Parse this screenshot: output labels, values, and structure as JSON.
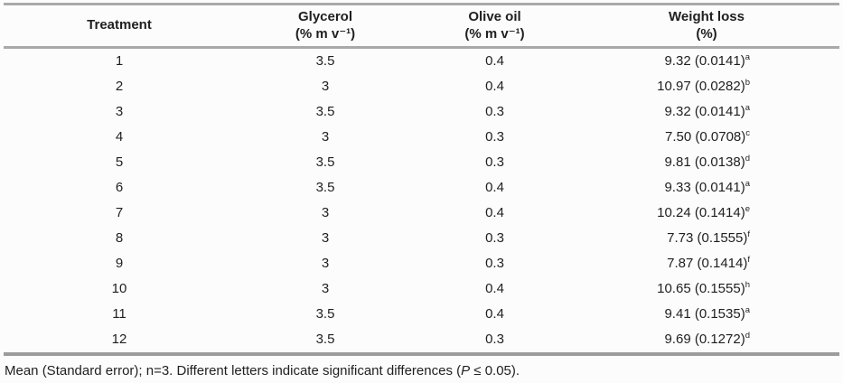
{
  "table": {
    "headers": [
      {
        "line1": "Treatment",
        "line2": ""
      },
      {
        "line1": "Glycerol",
        "line2": "(% m v⁻¹)"
      },
      {
        "line1": "Olive oil",
        "line2": "(% m v⁻¹)"
      },
      {
        "line1": "Weight loss",
        "line2": "(%)"
      }
    ],
    "rows": [
      {
        "treatment": "1",
        "glycerol": "3.5",
        "olive_oil": "0.4",
        "weight_loss": "9.32 (0.0141)",
        "sig": "a"
      },
      {
        "treatment": "2",
        "glycerol": "3",
        "olive_oil": "0.4",
        "weight_loss": "10.97 (0.0282)",
        "sig": "b"
      },
      {
        "treatment": "3",
        "glycerol": "3.5",
        "olive_oil": "0.3",
        "weight_loss": "9.32 (0.0141)",
        "sig": "a"
      },
      {
        "treatment": "4",
        "glycerol": "3",
        "olive_oil": "0.3",
        "weight_loss": "7.50 (0.0708)",
        "sig": "c"
      },
      {
        "treatment": "5",
        "glycerol": "3.5",
        "olive_oil": "0.3",
        "weight_loss": "9.81 (0.0138)",
        "sig": "d"
      },
      {
        "treatment": "6",
        "glycerol": "3.5",
        "olive_oil": "0.4",
        "weight_loss": "9.33 (0.0141)",
        "sig": "a"
      },
      {
        "treatment": "7",
        "glycerol": "3",
        "olive_oil": "0.4",
        "weight_loss": "10.24 (0.1414)",
        "sig": "e"
      },
      {
        "treatment": "8",
        "glycerol": "3",
        "olive_oil": "0.3",
        "weight_loss": "7.73 (0.1555)",
        "sig": "f"
      },
      {
        "treatment": "9",
        "glycerol": "3",
        "olive_oil": "0.3",
        "weight_loss": "7.87 (0.1414)",
        "sig": "f"
      },
      {
        "treatment": "10",
        "glycerol": "3",
        "olive_oil": "0.4",
        "weight_loss": "10.65 (0.1555)",
        "sig": "h"
      },
      {
        "treatment": "11",
        "glycerol": "3.5",
        "olive_oil": "0.4",
        "weight_loss": "9.41 (0.1535)",
        "sig": "a"
      },
      {
        "treatment": "12",
        "glycerol": "3.5",
        "olive_oil": "0.3",
        "weight_loss": "9.69 (0.1272)",
        "sig": "d"
      }
    ]
  },
  "footnote": {
    "prefix": "Mean (Standard error); n=3. Different letters indicate significant differences (",
    "p": "P",
    "rest": " ≤ 0.05)."
  },
  "colors": {
    "border_gray": "#a9a9a9",
    "text": "#1f1f1f",
    "background": "#fcfcfc"
  }
}
